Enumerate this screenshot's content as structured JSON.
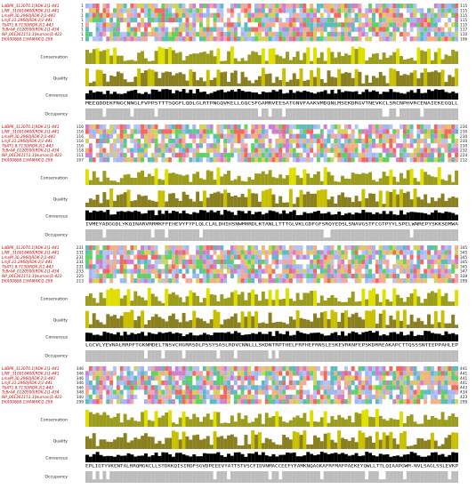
{
  "sequences": [
    {
      "name": "LdBPK_313070.1|RDK-2|1-441"
    },
    {
      "name": "LINF_310018400|RDK-2|1-441"
    },
    {
      "name": "LmxM.30.2960|RDK-2|1-441"
    },
    {
      "name": "LmjF.31.2960|RDK-2|1-441"
    },
    {
      "name": "TbAT1.8.7130|RDK-2|1-443"
    },
    {
      "name": "TcBrA4_0120500|RDK-2|1-434"
    },
    {
      "name": "NP_001361151.1|Human|1-423"
    },
    {
      "name": "EKA00808.1|HAMAK|1-299"
    }
  ],
  "annotation_labels": {
    "conservation": "Conservation",
    "quality": "Quality",
    "consensus": "Consensus",
    "occupancy": "Occupancy"
  },
  "blocks": [
    {
      "starts": [
        1,
        1,
        1,
        1,
        1,
        1,
        1,
        1
      ],
      "ends": [
        115,
        115,
        115,
        115,
        115,
        117,
        110,
        106
      ],
      "consensus": "MEEQDDEKFNGCNNGLFVPPSTTTSQGFLQDLGLRTPNGQVKELLGQCSFGAMRVEESATGNVFAAKVMDQNLMSEKDRGVTNEVKCLSRCNPHVRCENAIEKEGQLL"
    },
    {
      "starts": [
        116,
        116,
        116,
        116,
        116,
        118,
        111,
        107
      ],
      "ends": [
        230,
        230,
        230,
        230,
        230,
        232,
        224,
        212
      ],
      "consensus": "IVMEYADGGDLYKQINARVRRMKFFEHEVYFYFLQLCLALDHIHSNWMHRDLKTANLLTTTGLVKLGDFGFSRQYEDSLSNAVGSTFCGTPYYLSPELWNREPYSKKSDMWA"
    },
    {
      "starts": [
        231,
        231,
        231,
        231,
        231,
        233,
        225,
        213
      ],
      "ends": [
        345,
        345,
        345,
        345,
        345,
        347,
        339,
        299
      ],
      "consensus": "LGCVLYEVNALRRPFTGKNMDELTNSVCHGRRSDLPSSYSASLRDVCNNLLLSKDNTRPTHELFRFHEFRNSLESKEVRKNFEPSKDRREAKAPCTTQSSSNTEEPPAHLEP"
    },
    {
      "starts": [
        346,
        346,
        346,
        346,
        346,
        348,
        340,
        299
      ],
      "ends": [
        441,
        441,
        441,
        441,
        443,
        434,
        423,
        299
      ],
      "consensus": "EPLIGTYVKENTALRRQMGKCLLSTDKKQISIRDFSGVDPEEEVYATTSTVSCFIDVNMACCEEFYFAMKNQAGKAFRFMAFPAEKEYQWLLTTLQIAAPGWM-NVLSAGLSSLEVKP"
    }
  ]
}
